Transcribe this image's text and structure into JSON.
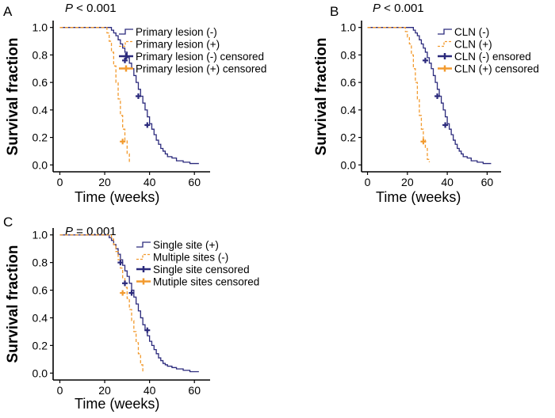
{
  "colors": {
    "blue": "#2b2a7c",
    "orange": "#f29a2e",
    "axis": "#000000"
  },
  "chart_data": [
    {
      "panel": "A",
      "type": "line",
      "p_label": "P",
      "p_rest": " < 0.001",
      "xlabel": "Time (weeks)",
      "ylabel": "Survival fraction",
      "xlim": [
        -3,
        67
      ],
      "ylim": [
        -0.05,
        1.05
      ],
      "xticks": [
        0,
        20,
        40,
        60
      ],
      "yticks": [
        0.0,
        0.2,
        0.4,
        0.6,
        0.8,
        1.0
      ],
      "ytick_labels": [
        "0.0",
        "0.2",
        "0.4",
        "0.6",
        "0.8",
        "1.0"
      ],
      "series": [
        {
          "name": "Primary lesion (-)",
          "color": "blue",
          "dash": false,
          "x": [
            0,
            22,
            23,
            24,
            25,
            26,
            27,
            28,
            29,
            30,
            31,
            32,
            33,
            34,
            35,
            36,
            37,
            38,
            39,
            40,
            41,
            42,
            43,
            44,
            45,
            46,
            47,
            48,
            50,
            52,
            55,
            58,
            62
          ],
          "y": [
            1.0,
            1.0,
            0.98,
            0.96,
            0.94,
            0.91,
            0.88,
            0.85,
            0.82,
            0.78,
            0.74,
            0.7,
            0.65,
            0.6,
            0.55,
            0.5,
            0.45,
            0.4,
            0.35,
            0.3,
            0.26,
            0.22,
            0.18,
            0.15,
            0.12,
            0.1,
            0.08,
            0.06,
            0.05,
            0.03,
            0.02,
            0.01,
            0.01
          ]
        },
        {
          "name": "Primary lesion (+)",
          "color": "orange",
          "dash": true,
          "x": [
            0,
            20,
            21,
            22,
            23,
            24,
            25,
            26,
            27,
            28,
            29,
            30,
            31
          ],
          "y": [
            1.0,
            1.0,
            0.96,
            0.9,
            0.82,
            0.72,
            0.6,
            0.48,
            0.36,
            0.26,
            0.18,
            0.08,
            0.02
          ]
        }
      ],
      "censored": [
        {
          "name": "Primary lesion (-) censored",
          "color": "blue",
          "points": [
            [
              29,
              0.76
            ],
            [
              35,
              0.5
            ],
            [
              39,
              0.29
            ]
          ]
        },
        {
          "name": "Primary lesion (+) censored",
          "color": "orange",
          "points": [
            [
              28,
              0.17
            ]
          ]
        }
      ],
      "legend": [
        {
          "label": "Primary lesion (-)",
          "color": "blue",
          "style": "step"
        },
        {
          "label": "Primary lesion (+)",
          "color": "orange",
          "style": "stepdash"
        },
        {
          "label": "Primary lesion (-) censored",
          "color": "blue",
          "style": "censor"
        },
        {
          "label": "Primary lesion (+) censored",
          "color": "orange",
          "style": "censor"
        }
      ],
      "legend_position": "top-right"
    },
    {
      "panel": "B",
      "type": "line",
      "p_label": "P",
      "p_rest": " < 0.001",
      "xlabel": "Time (weeks)",
      "ylabel": "Survival fraction",
      "xlim": [
        -3,
        67
      ],
      "ylim": [
        -0.05,
        1.05
      ],
      "xticks": [
        0,
        20,
        40,
        60
      ],
      "yticks": [
        0.0,
        0.2,
        0.4,
        0.6,
        0.8,
        1.0
      ],
      "ytick_labels": [
        "0.0",
        "0.2",
        "0.4",
        "0.6",
        "0.8",
        "1.0"
      ],
      "series": [
        {
          "name": "CLN (-)",
          "color": "blue",
          "dash": false,
          "x": [
            0,
            22,
            23,
            24,
            25,
            26,
            27,
            28,
            29,
            30,
            31,
            32,
            33,
            34,
            35,
            36,
            37,
            38,
            39,
            40,
            41,
            42,
            43,
            44,
            45,
            46,
            47,
            48,
            50,
            52,
            55,
            58,
            62
          ],
          "y": [
            1.0,
            1.0,
            0.98,
            0.96,
            0.94,
            0.91,
            0.88,
            0.85,
            0.82,
            0.78,
            0.74,
            0.7,
            0.65,
            0.6,
            0.55,
            0.5,
            0.45,
            0.4,
            0.35,
            0.3,
            0.26,
            0.22,
            0.18,
            0.15,
            0.12,
            0.1,
            0.08,
            0.06,
            0.05,
            0.03,
            0.02,
            0.01,
            0.01
          ]
        },
        {
          "name": "CLN (+)",
          "color": "orange",
          "dash": true,
          "x": [
            0,
            18,
            19,
            20,
            21,
            22,
            23,
            24,
            25,
            26,
            27,
            28,
            29,
            30,
            31
          ],
          "y": [
            1.0,
            1.0,
            0.97,
            0.93,
            0.88,
            0.8,
            0.7,
            0.6,
            0.48,
            0.36,
            0.26,
            0.18,
            0.12,
            0.04,
            0.02
          ]
        }
      ],
      "censored": [
        {
          "name": "CLN (-) ensored",
          "color": "blue",
          "points": [
            [
              29,
              0.76
            ],
            [
              35,
              0.5
            ],
            [
              39,
              0.29
            ]
          ]
        },
        {
          "name": "CLN (+) censored",
          "color": "orange",
          "points": [
            [
              28,
              0.17
            ]
          ]
        }
      ],
      "legend": [
        {
          "label": "CLN (-)",
          "color": "blue",
          "style": "step"
        },
        {
          "label": "CLN (+)",
          "color": "orange",
          "style": "stepdash"
        },
        {
          "label": "CLN (-) ensored",
          "color": "blue",
          "style": "censor"
        },
        {
          "label": "CLN (+) censored",
          "color": "orange",
          "style": "censor"
        }
      ],
      "legend_position": "top-right"
    },
    {
      "panel": "C",
      "type": "line",
      "p_label": "P",
      "p_rest": " = 0.001",
      "xlabel": "Time (weeks)",
      "ylabel": "Survival fraction",
      "xlim": [
        -3,
        67
      ],
      "ylim": [
        -0.05,
        1.05
      ],
      "xticks": [
        0,
        20,
        40,
        60
      ],
      "yticks": [
        0.0,
        0.2,
        0.4,
        0.6,
        0.8,
        1.0
      ],
      "ytick_labels": [
        "0.0",
        "0.2",
        "0.4",
        "0.6",
        "0.8",
        "1.0"
      ],
      "series": [
        {
          "name": "Single site (+)",
          "color": "blue",
          "dash": false,
          "x": [
            0,
            21,
            22,
            23,
            24,
            25,
            26,
            27,
            28,
            29,
            30,
            31,
            32,
            33,
            34,
            35,
            36,
            37,
            38,
            39,
            40,
            41,
            42,
            43,
            44,
            45,
            46,
            47,
            48,
            50,
            52,
            55,
            58,
            62
          ],
          "y": [
            1.0,
            1.0,
            0.98,
            0.96,
            0.93,
            0.9,
            0.86,
            0.82,
            0.78,
            0.74,
            0.7,
            0.65,
            0.6,
            0.55,
            0.5,
            0.45,
            0.4,
            0.35,
            0.31,
            0.27,
            0.23,
            0.2,
            0.17,
            0.14,
            0.11,
            0.09,
            0.07,
            0.06,
            0.05,
            0.04,
            0.03,
            0.02,
            0.01,
            0.01
          ]
        },
        {
          "name": "Multiple sites (-)",
          "color": "orange",
          "dash": true,
          "x": [
            0,
            22,
            23,
            24,
            25,
            26,
            27,
            28,
            29,
            30,
            31,
            32,
            33,
            34,
            35,
            36,
            37
          ],
          "y": [
            1.0,
            1.0,
            0.97,
            0.93,
            0.88,
            0.82,
            0.76,
            0.69,
            0.62,
            0.54,
            0.46,
            0.38,
            0.3,
            0.22,
            0.14,
            0.06,
            0.01
          ]
        }
      ],
      "censored": [
        {
          "name": "Single site censored",
          "color": "blue",
          "points": [
            [
              27,
              0.8
            ],
            [
              29,
              0.65
            ],
            [
              32,
              0.58
            ],
            [
              39,
              0.31
            ]
          ]
        },
        {
          "name": "Mutiple sites censored",
          "color": "orange",
          "points": [
            [
              28,
              0.58
            ]
          ]
        }
      ],
      "legend": [
        {
          "label": "Single site (+)",
          "color": "blue",
          "style": "step"
        },
        {
          "label": "Multiple sites (-)",
          "color": "orange",
          "style": "stepdash"
        },
        {
          "label": "Single site censored",
          "color": "blue",
          "style": "censor"
        },
        {
          "label": "Mutiple sites censored",
          "color": "orange",
          "style": "censor"
        }
      ],
      "legend_position": "top-right"
    }
  ]
}
